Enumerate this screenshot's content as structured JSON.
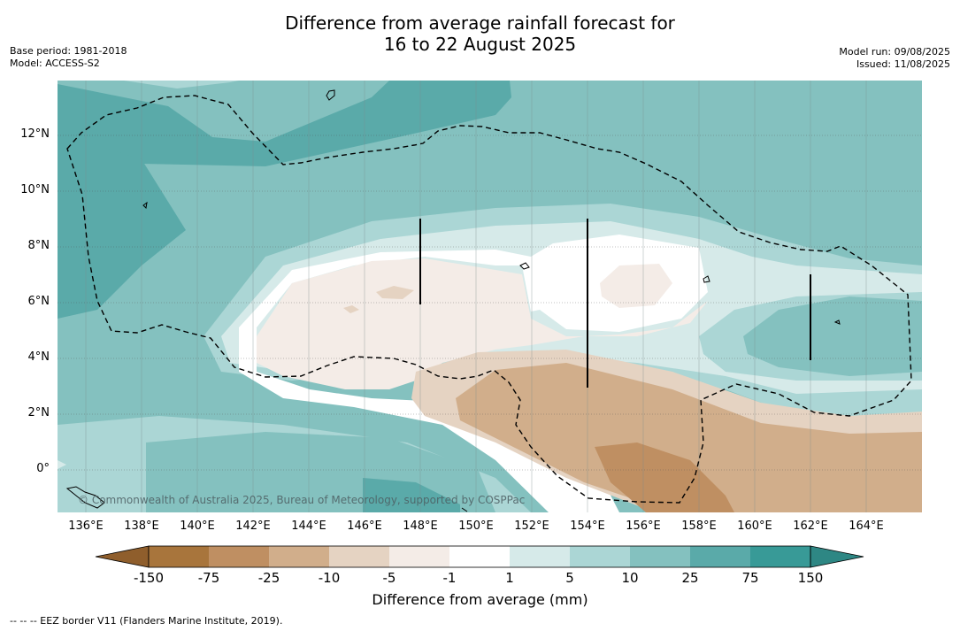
{
  "title": {
    "line1": "Difference from average rainfall forecast for",
    "line2": "16 to 22 August 2025"
  },
  "meta": {
    "base_period": "Base period: 1981-2018",
    "model": "Model: ACCESS-S2",
    "model_run": "Model run: 09/08/2025",
    "issued": "Issued: 11/08/2025"
  },
  "map": {
    "x_ticks": [
      "136°E",
      "138°E",
      "140°E",
      "142°E",
      "144°E",
      "146°E",
      "148°E",
      "150°E",
      "152°E",
      "154°E",
      "156°E",
      "158°E",
      "160°E",
      "162°E",
      "164°E"
    ],
    "y_ticks": [
      "12°N",
      "10°N",
      "8°N",
      "6°N",
      "4°N",
      "2°N",
      "0°"
    ],
    "credit": "© Commonwealth of Australia 2025, Bureau of Meteorology, supported by COSPPac"
  },
  "colorbar": {
    "labels": [
      "-150",
      "-75",
      "-25",
      "-10",
      "-5",
      "-1",
      "1",
      "5",
      "10",
      "25",
      "75",
      "150"
    ],
    "colors": [
      "#a8753c",
      "#bf8f62",
      "#d1ae8b",
      "#e5d3c2",
      "#f4ece7",
      "#ffffff",
      "#d6eae9",
      "#abd6d5",
      "#84c1bf",
      "#5aaaa9",
      "#389a97"
    ],
    "underflow_color": "#8f5e2c",
    "overflow_color": "#2e8784",
    "title": "Difference from average (mm)"
  },
  "footnote": "--  --  -- EEZ border V11 (Flanders Marine Institute, 2019)."
}
